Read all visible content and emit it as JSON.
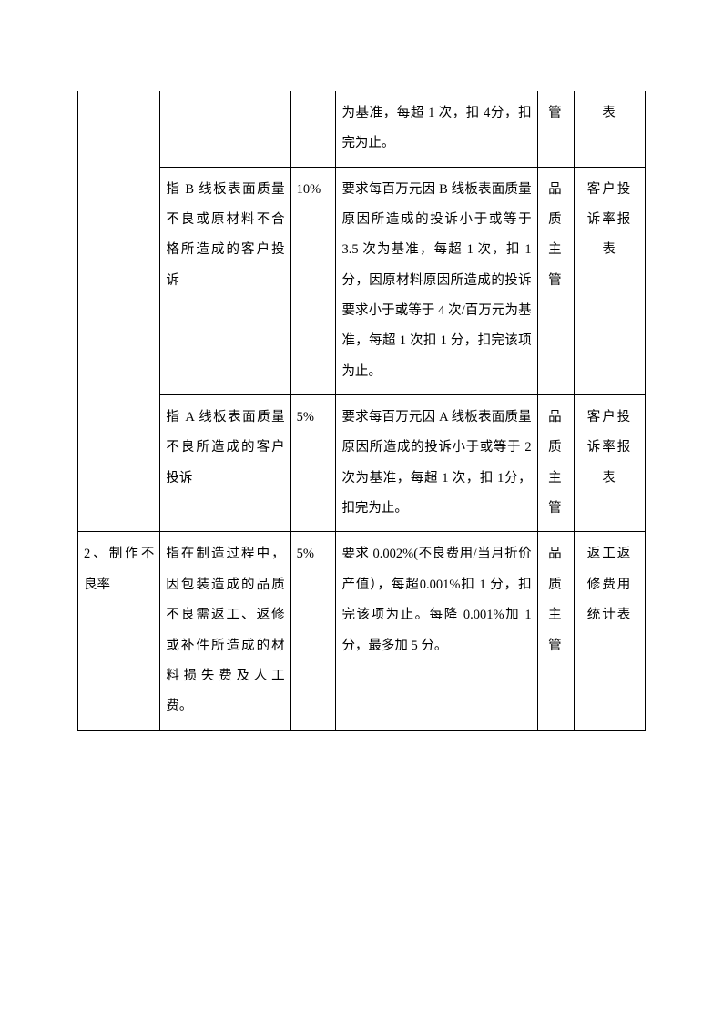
{
  "rows": [
    {
      "c0": "",
      "c1": "",
      "c2": "",
      "c3": "为基准，每超 1 次，扣 4分，扣完为止。",
      "c4": "管",
      "c5": "表"
    },
    {
      "c0": "",
      "c1": "指 B 线板表面质量不良或原材料不合格所造成的客户投诉",
      "c2": "10%",
      "c3": "要求每百万元因 B 线板表面质量原因所造成的投诉小于或等于 3.5 次为基准，每超 1 次，扣 1分，因原材料原因所造成的投诉要求小于或等于 4 次/百万元为基准，每超 1 次扣 1 分，扣完该项为止。",
      "c4": "品质主管",
      "c5": "客户投诉率报表"
    },
    {
      "c0": "",
      "c1": "指 A 线板表面质量不良所造成的客户投诉",
      "c2": "5%",
      "c3": "要求每百万元因 A 线板表面质量原因所造成的投诉小于或等于 2 次为基准，每超 1 次，扣 1分，扣完为止。",
      "c4": "品质主管",
      "c5": "客户投诉率报表"
    },
    {
      "c0": "2、制作不良率",
      "c1": "指在制造过程中，因包装造成的品质不良需返工、返修或补件所造成的材料损失费及人工费。",
      "c2": "5%",
      "c3": "要求 0.002%(不良费用/当月折价产值），每超0.001%扣 1 分，扣完该项为止。每降 0.001%加 1 分，最多加 5 分。",
      "c4": "品质主管",
      "c5": "返工返修费用统计表"
    }
  ]
}
